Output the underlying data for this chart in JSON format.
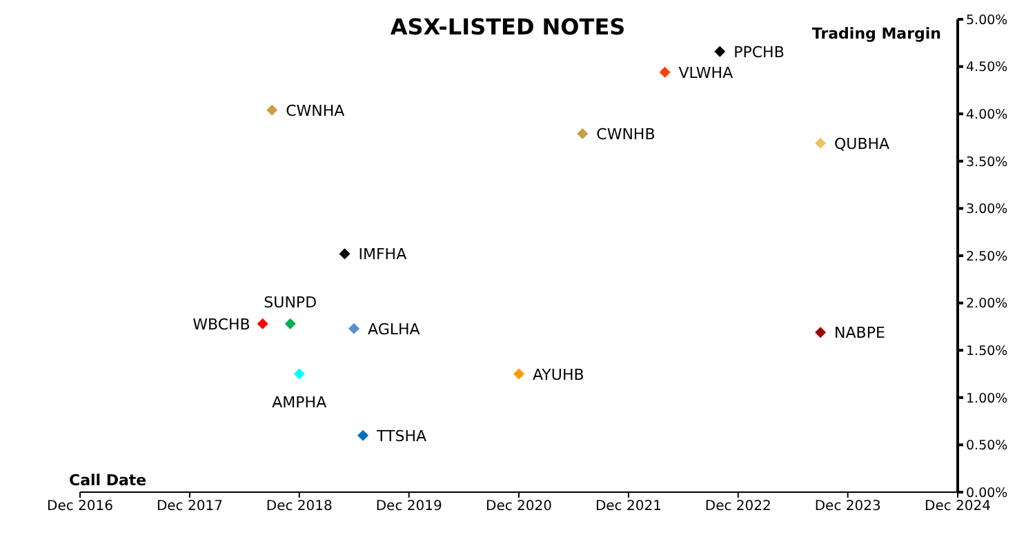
{
  "chart_data": {
    "type": "scatter",
    "title": "ASX-LISTED NOTES",
    "xlabel": "Call Date",
    "ylabel": "Trading Margin",
    "marker": "diamond",
    "grid": false,
    "legend": false,
    "xlim": [
      "2016-12",
      "2024-12"
    ],
    "xticks": [
      {
        "value": "2016-12",
        "label": "Dec 2016"
      },
      {
        "value": "2017-12",
        "label": "Dec 2017"
      },
      {
        "value": "2018-12",
        "label": "Dec 2018"
      },
      {
        "value": "2019-12",
        "label": "Dec 2019"
      },
      {
        "value": "2020-12",
        "label": "Dec 2020"
      },
      {
        "value": "2021-12",
        "label": "Dec 2021"
      },
      {
        "value": "2022-12",
        "label": "Dec 2022"
      },
      {
        "value": "2023-12",
        "label": "Dec 2023"
      },
      {
        "value": "2024-12",
        "label": "Dec 2024"
      }
    ],
    "ylim": [
      0,
      5
    ],
    "yticks": [
      {
        "value": 0,
        "label": "0.00%"
      },
      {
        "value": 0.5,
        "label": "0.50%"
      },
      {
        "value": 1,
        "label": "1.00%"
      },
      {
        "value": 1.5,
        "label": "1.50%"
      },
      {
        "value": 2,
        "label": "2.00%"
      },
      {
        "value": 2.5,
        "label": "2.50%"
      },
      {
        "value": 3,
        "label": "3.00%"
      },
      {
        "value": 3.5,
        "label": "3.50%"
      },
      {
        "value": 4,
        "label": "4.00%"
      },
      {
        "value": 4.5,
        "label": "4.50%"
      },
      {
        "value": 5,
        "label": "5.00%"
      }
    ],
    "series": [
      {
        "name": "PPCHB",
        "color": "#000000",
        "x": [
          "2022-10"
        ],
        "values": [
          4.66
        ]
      },
      {
        "name": "VLWHA",
        "color": "#ff4000",
        "x": [
          "2022-04"
        ],
        "values": [
          4.44
        ]
      },
      {
        "name": "CWNHA",
        "color": "#c8a040",
        "x": [
          "2018-09"
        ],
        "values": [
          4.04
        ]
      },
      {
        "name": "CWNHB",
        "color": "#c8a040",
        "x": [
          "2021-07"
        ],
        "values": [
          3.79
        ]
      },
      {
        "name": "QUBHA",
        "color": "#f0c060",
        "x": [
          "2023-09"
        ],
        "values": [
          3.69
        ]
      },
      {
        "name": "IMFHA",
        "color": "#000000",
        "x": [
          "2019-05"
        ],
        "values": [
          2.52
        ]
      },
      {
        "name": "WBCHB",
        "color": "#ff0000",
        "x": [
          "2018-08"
        ],
        "values": [
          1.78
        ]
      },
      {
        "name": "SUNPD",
        "color": "#00b050",
        "x": [
          "2018-11"
        ],
        "values": [
          1.78
        ]
      },
      {
        "name": "AGLHA",
        "color": "#5b8fd0",
        "x": [
          "2019-06"
        ],
        "values": [
          1.73
        ]
      },
      {
        "name": "NABPE",
        "color": "#990000",
        "x": [
          "2023-09"
        ],
        "values": [
          1.69
        ]
      },
      {
        "name": "AMPHA",
        "color": "#00ffff",
        "x": [
          "2018-12"
        ],
        "values": [
          1.25
        ]
      },
      {
        "name": "AYUHB",
        "color": "#ff9900",
        "x": [
          "2020-12"
        ],
        "values": [
          1.25
        ]
      },
      {
        "name": "TTSHA",
        "color": "#0070c0",
        "x": [
          "2019-07"
        ],
        "values": [
          0.6
        ]
      }
    ]
  }
}
